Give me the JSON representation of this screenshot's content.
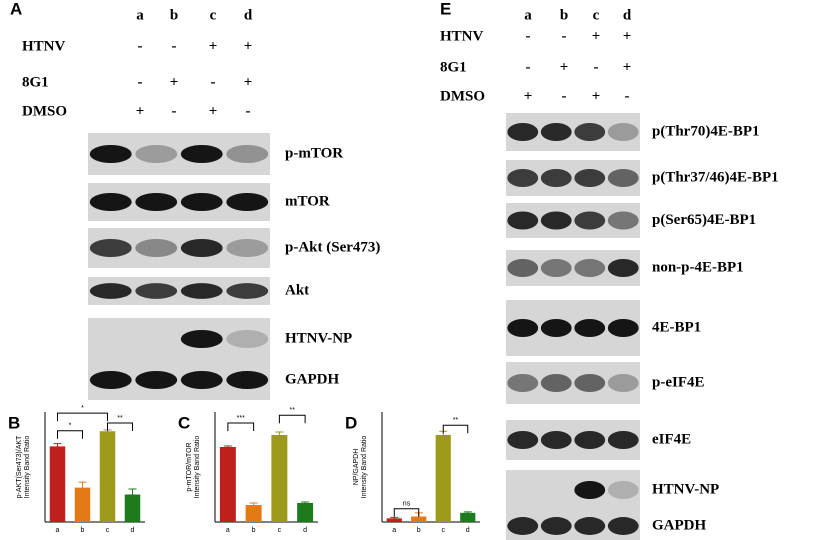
{
  "panel_a": {
    "label": "A",
    "lanes": [
      "a",
      "b",
      "c",
      "d"
    ],
    "conditions": [
      {
        "name": "HTNV",
        "signs": [
          "-",
          "-",
          "+",
          "+"
        ]
      },
      {
        "name": "8G1",
        "signs": [
          "-",
          "+",
          "-",
          "+"
        ]
      },
      {
        "name": "DMSO",
        "signs": [
          "+",
          "-",
          "+",
          "-"
        ]
      }
    ],
    "blots": [
      "p-mTOR",
      "mTOR",
      "p-Akt (Ser473)",
      "Akt",
      "HTNV-NP",
      "GAPDH"
    ]
  },
  "panel_e": {
    "label": "E",
    "lanes": [
      "a",
      "b",
      "c",
      "d"
    ],
    "conditions": [
      {
        "name": "HTNV",
        "signs": [
          "-",
          "-",
          "+",
          "+"
        ]
      },
      {
        "name": "8G1",
        "signs": [
          "-",
          "+",
          "-",
          "+"
        ]
      },
      {
        "name": "DMSO",
        "signs": [
          "+",
          "-",
          "+",
          "-"
        ]
      }
    ],
    "blots": [
      "p(Thr70)4E-BP1",
      "p(Thr37/46)4E-BP1",
      "p(Ser65)4E-BP1",
      "non-p-4E-BP1",
      "4E-BP1",
      "p-eIF4E",
      "eIF4E",
      "HTNV-NP",
      "GAPDH"
    ]
  },
  "chart_data": [
    {
      "type": "bar",
      "label": "B",
      "y_label": [
        "p-AKT(Ser473)/AKT",
        "Intensity Band Ratio"
      ],
      "categories": [
        "a",
        "b",
        "c",
        "d"
      ],
      "values": [
        0.55,
        0.25,
        0.66,
        0.2
      ],
      "errors": [
        0.02,
        0.04,
        0.01,
        0.04
      ],
      "colors": [
        "#c0201c",
        "#e27a16",
        "#9c9a18",
        "#1d7a1d"
      ],
      "ylim": [
        0,
        0.8
      ],
      "annotations": [
        "*",
        "*",
        "**"
      ]
    },
    {
      "type": "bar",
      "label": "C",
      "y_label": [
        "p-mTOR/mTOR",
        "Intensity Band Ratio"
      ],
      "categories": [
        "a",
        "b",
        "c",
        "d"
      ],
      "values": [
        0.75,
        0.17,
        0.87,
        0.19
      ],
      "errors": [
        0.01,
        0.02,
        0.03,
        0.01
      ],
      "colors": [
        "#c0201c",
        "#e27a16",
        "#9c9a18",
        "#1d7a1d"
      ],
      "ylim": [
        0,
        1.1
      ],
      "annotations": [
        "***",
        "**"
      ]
    },
    {
      "type": "bar",
      "label": "D",
      "y_label": [
        "NP/GAPDH",
        "Intensity Band Ratio"
      ],
      "categories": [
        "a",
        "b",
        "c",
        "d"
      ],
      "values": [
        0.04,
        0.06,
        0.95,
        0.1
      ],
      "errors": [
        0.01,
        0.04,
        0.04,
        0.01
      ],
      "colors": [
        "#c0201c",
        "#e27a16",
        "#9c9a18",
        "#1d7a1d"
      ],
      "ylim": [
        0,
        1.2
      ],
      "annotations": [
        "ns",
        "**"
      ]
    }
  ]
}
